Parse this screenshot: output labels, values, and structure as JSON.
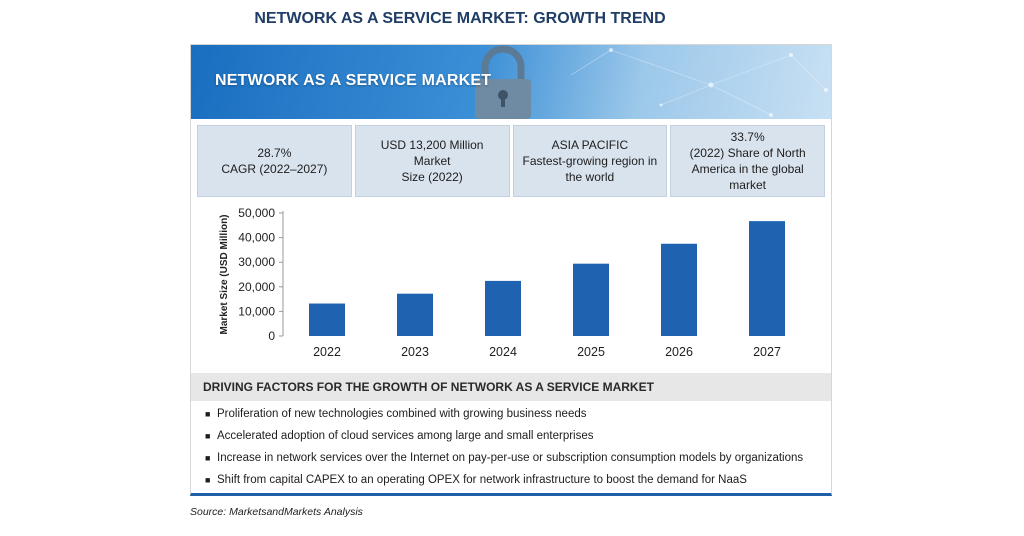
{
  "page_title": "NETWORK AS A SERVICE MARKET: GROWTH TREND",
  "banner_title": "NETWORK AS A SERVICE MARKET",
  "stats": [
    {
      "line1": "28.7%",
      "line2": "CAGR (2022–2027)"
    },
    {
      "line1": "USD 13,200 Million Market",
      "line2": "Size (2022)"
    },
    {
      "line1": "ASIA PACIFIC",
      "line2": "Fastest-growing region in the world"
    },
    {
      "line1": "33.7%",
      "line2": "(2022) Share of North America in the global market"
    }
  ],
  "chart_data": {
    "type": "bar",
    "categories": [
      "2022",
      "2023",
      "2024",
      "2025",
      "2026",
      "2027"
    ],
    "values": [
      13200,
      17200,
      22400,
      29400,
      37500,
      46700
    ],
    "ylabel": "Market Size (USD Million)",
    "ylim": [
      0,
      50000
    ],
    "yticks": [
      "0",
      "10,000",
      "20,000",
      "30,000",
      "40,000",
      "50,000"
    ],
    "grid": false,
    "bar_color": "#1f63b0"
  },
  "drivers_title": "DRIVING FACTORS FOR THE GROWTH OF NETWORK AS A SERVICE MARKET",
  "drivers": [
    "Proliferation of new technologies combined with growing business needs",
    "Accelerated adoption of cloud services among large and small enterprises",
    "Increase in network services over the Internet on pay-per-use or subscription consumption models by organizations",
    "Shift from capital CAPEX to an operating OPEX for network infrastructure to boost the demand for NaaS"
  ],
  "source": "Source: MarketsandMarkets Analysis"
}
